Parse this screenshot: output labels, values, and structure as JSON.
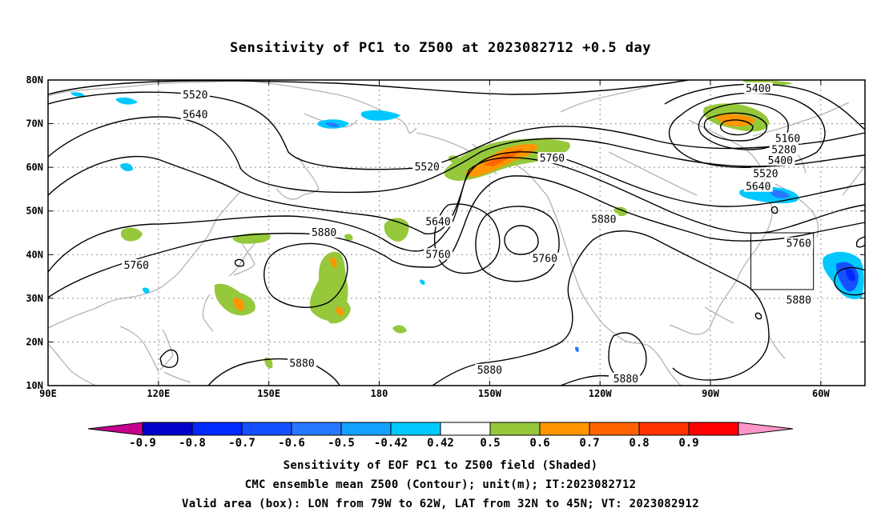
{
  "title": "Sensitivity of PC1 to Z500 at 2023082712 +0.5 day",
  "map": {
    "lat_labels": [
      "80N",
      "70N",
      "60N",
      "50N",
      "40N",
      "30N",
      "20N",
      "10N"
    ],
    "lon_labels": [
      "90E",
      "120E",
      "150E",
      "180",
      "150W",
      "120W",
      "90W",
      "60W"
    ],
    "lon_range": [
      90,
      312
    ],
    "lat_range": [
      10,
      80
    ]
  },
  "contours": [
    {
      "label": "5520",
      "lon": 130,
      "lat": 76.5
    },
    {
      "label": "5640",
      "lon": 130,
      "lat": 72
    },
    {
      "label": "5400",
      "lon": 283,
      "lat": 78
    },
    {
      "label": "5160",
      "lon": 291,
      "lat": 66.5
    },
    {
      "label": "5280",
      "lon": 290,
      "lat": 64
    },
    {
      "label": "5400",
      "lon": 289,
      "lat": 61.5
    },
    {
      "label": "5520",
      "lon": 285,
      "lat": 58.5
    },
    {
      "label": "5640",
      "lon": 283,
      "lat": 55.5
    },
    {
      "label": "5760",
      "lon": 227,
      "lat": 62
    },
    {
      "label": "5520",
      "lon": 193,
      "lat": 60
    },
    {
      "label": "5640",
      "lon": 196,
      "lat": 47.5
    },
    {
      "label": "5760",
      "lon": 196,
      "lat": 40
    },
    {
      "label": "5760",
      "lon": 225,
      "lat": 39
    },
    {
      "label": "5880",
      "lon": 241,
      "lat": 48
    },
    {
      "label": "5880",
      "lon": 165,
      "lat": 45
    },
    {
      "label": "5760",
      "lon": 114,
      "lat": 37.5
    },
    {
      "label": "5760",
      "lon": 294,
      "lat": 42.5
    },
    {
      "label": "5880",
      "lon": 294,
      "lat": 29.5
    },
    {
      "label": "5880",
      "lon": 159,
      "lat": 15
    },
    {
      "label": "5880",
      "lon": 210,
      "lat": 13.5
    },
    {
      "label": "5880",
      "lon": 247,
      "lat": 11.5
    }
  ],
  "valid_box": {
    "lon_min": 281,
    "lon_max": 298,
    "lat_min": 32,
    "lat_max": 45
  },
  "colorbar": {
    "colors": [
      "#c4008c",
      "#0000c8",
      "#0028ff",
      "#1450ff",
      "#2878ff",
      "#14a0ff",
      "#00c8ff",
      "#ffffff",
      "#96c83c",
      "#ff9600",
      "#ff6400",
      "#ff3200",
      "#ff0000",
      "#ff96c8"
    ],
    "labels": [
      "-0.9",
      "-0.8",
      "-0.7",
      "-0.6",
      "-0.5",
      "-0.42",
      "0.42",
      "0.5",
      "0.6",
      "0.7",
      "0.8",
      "0.9"
    ]
  },
  "footer": {
    "line1": "Sensitivity of EOF PC1 to Z500 field (Shaded)",
    "line2": "CMC ensemble mean Z500 (Contour); unit(m); IT:2023082712",
    "line3": "Valid area (box): LON from 79W to 62W, LAT from 32N to 45N; VT: 2023082912"
  }
}
